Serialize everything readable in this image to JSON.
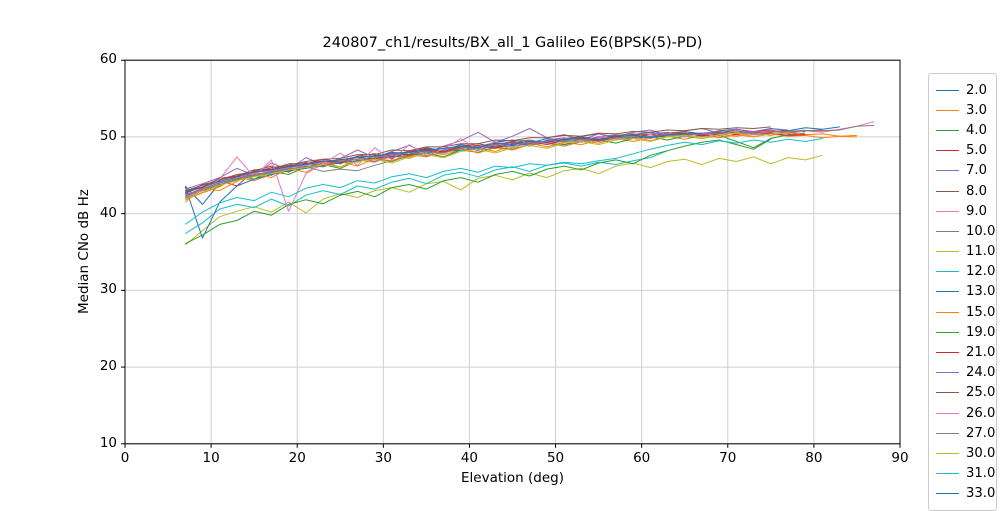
{
  "chart_data": {
    "type": "line",
    "title": "240807_ch1/results/BX_all_1 Galileo E6(BPSK(5)-PD)",
    "xlabel": "Elevation (deg)",
    "ylabel": "Median CNo dB Hz",
    "xlim": [
      0,
      90
    ],
    "ylim": [
      10,
      60
    ],
    "xticks": [
      0,
      10,
      20,
      30,
      40,
      50,
      60,
      70,
      80,
      90
    ],
    "yticks": [
      10,
      20,
      30,
      40,
      50,
      60
    ],
    "grid": true,
    "grid_color": "#cfcfcf",
    "legend_position": "right-outside",
    "legend_border_color": "#cccccc",
    "series": [
      {
        "name": "2.0",
        "color": "#1f77b4",
        "x_start": 7,
        "x_step": 2,
        "values": [
          43.6,
          41.2,
          44.0,
          44.6,
          45.3,
          45.0,
          46.3,
          46.0,
          46.8,
          46.5,
          47.4,
          47.1,
          48.0,
          47.7,
          48.6,
          48.2,
          49.0,
          48.7,
          49.3,
          49.6,
          49.2,
          49.8,
          49.6,
          50.1,
          50.4,
          49.9,
          50.3,
          50.6,
          50.2,
          50.7,
          50.4,
          50.8,
          51.0,
          50.6,
          51.1,
          50.8,
          51.2,
          51.0,
          51.3
        ]
      },
      {
        "name": "3.0",
        "color": "#ff7f0e",
        "x_start": 7,
        "x_step": 2,
        "values": [
          41.8,
          42.7,
          43.5,
          44.8,
          44.3,
          45.1,
          45.6,
          45.9,
          46.6,
          46.1,
          47.0,
          46.7,
          47.5,
          47.2,
          48.1,
          47.7,
          48.3,
          48.6,
          48.1,
          48.9,
          49.2,
          48.7,
          49.3,
          49.0,
          49.6,
          49.8,
          49.4,
          49.9,
          50.1,
          49.7,
          50.2,
          49.9,
          50.3,
          50.0,
          50.4,
          50.1,
          50.2,
          49.9,
          50.1,
          50.0
        ]
      },
      {
        "name": "4.0",
        "color": "#2ca02c",
        "x_start": 7,
        "x_step": 2,
        "values": [
          42.0,
          43.0,
          43.6,
          44.9,
          44.5,
          45.5,
          45.1,
          46.1,
          46.4,
          45.9,
          46.9,
          47.2,
          46.8,
          47.6,
          47.9,
          47.4,
          48.3,
          48.0,
          48.7,
          48.4,
          49.0,
          49.2,
          48.8,
          49.4,
          49.6,
          49.2,
          49.8,
          50.0,
          49.6,
          50.1,
          49.8,
          50.2,
          49.4,
          48.6,
          49.8,
          50.3,
          50.5
        ]
      },
      {
        "name": "5.0",
        "color": "#d62728",
        "x_start": 7,
        "x_step": 2,
        "values": [
          42.6,
          43.8,
          44.3,
          43.6,
          45.6,
          46.2,
          45.4,
          46.6,
          46.2,
          47.1,
          46.7,
          47.6,
          47.2,
          48.1,
          48.4,
          47.9,
          48.7,
          48.3,
          49.1,
          49.3,
          48.9,
          49.5,
          49.8,
          49.4,
          50.0,
          49.7,
          50.2,
          50.4,
          50.0,
          50.5,
          50.2,
          50.6,
          50.3,
          50.7,
          50.9,
          50.5,
          50.8,
          50.9
        ]
      },
      {
        "name": "7.0",
        "color": "#9467bd",
        "x_start": 7,
        "x_step": 2,
        "values": [
          43.2,
          43.9,
          44.7,
          45.9,
          45.0,
          46.6,
          45.7,
          47.3,
          46.4,
          47.2,
          48.3,
          47.3,
          48.1,
          48.9,
          47.9,
          48.8,
          49.5,
          50.6,
          49.3,
          50.1,
          51.1,
          49.9,
          50.3,
          49.6,
          50.4,
          50.0,
          50.6,
          50.9,
          50.2,
          50.8,
          51.1,
          50.5,
          51.0,
          50.7,
          51.1,
          50.9
        ]
      },
      {
        "name": "8.0",
        "color": "#8c564b",
        "x_start": 7,
        "x_step": 2,
        "values": [
          42.9,
          43.5,
          44.6,
          44.9,
          45.7,
          45.8,
          46.5,
          46.5,
          47.1,
          47.2,
          47.7,
          47.7,
          48.3,
          48.2,
          48.7,
          48.7,
          49.1,
          49.1,
          49.6,
          49.5,
          49.9,
          49.9,
          50.2,
          50.1,
          50.5,
          50.4,
          50.7,
          50.6,
          50.9,
          50.8,
          51.1,
          51.0,
          51.2,
          51.1,
          51.3
        ]
      },
      {
        "name": "9.0",
        "color": "#e377c2",
        "x_start": 7,
        "x_step": 2,
        "values": [
          42.4,
          43.3,
          44.1,
          44.6,
          45.4,
          45.6,
          46.0,
          46.3,
          46.7,
          46.9,
          47.3,
          47.0,
          47.8,
          47.9,
          48.2,
          48.3,
          48.6,
          48.7,
          49.0,
          48.6,
          49.3,
          49.4,
          49.6,
          49.6,
          49.9,
          49.9,
          50.1,
          49.8,
          50.3,
          50.3,
          50.5,
          50.5,
          50.6,
          50.6,
          50.8,
          50.7,
          50.9
        ]
      },
      {
        "name": "10.0",
        "color": "#7f7f7f",
        "x_start": 7,
        "x_step": 2,
        "values": [
          42.2,
          43.1,
          43.8,
          44.4,
          44.9,
          45.3,
          45.7,
          46.1,
          45.5,
          45.8,
          45.6,
          46.3,
          46.9,
          47.5,
          47.9,
          48.1,
          48.3,
          48.5,
          48.7,
          48.9,
          49.0,
          49.2,
          49.4,
          49.5,
          49.7,
          49.8,
          49.9,
          50.0,
          50.1,
          50.2,
          50.3,
          50.4,
          50.5,
          50.6,
          50.6,
          50.7,
          50.8,
          50.8,
          50.9
        ]
      },
      {
        "name": "11.0",
        "color": "#bcbd22",
        "x_start": 7,
        "x_step": 2,
        "values": [
          35.9,
          37.8,
          39.6,
          40.3,
          40.9,
          40.2,
          41.5,
          40.1,
          41.9,
          42.6,
          42.1,
          43.0,
          43.4,
          42.8,
          43.9,
          44.2,
          43.1,
          44.6,
          45.0,
          44.4,
          45.3,
          44.7,
          45.6,
          45.9,
          45.2,
          46.2,
          46.6,
          46.0,
          46.8,
          47.1,
          46.4,
          47.2,
          46.8,
          47.4,
          46.5,
          47.3,
          47.0,
          47.6
        ]
      },
      {
        "name": "12.0",
        "color": "#17becf",
        "x_start": 7,
        "x_step": 2,
        "values": [
          37.4,
          38.8,
          40.6,
          41.2,
          40.8,
          41.9,
          41.0,
          42.4,
          43.0,
          42.5,
          43.6,
          43.2,
          44.1,
          44.6,
          43.9,
          45.0,
          45.4,
          44.8,
          45.7,
          46.1,
          45.5,
          46.3,
          46.6,
          46.2,
          46.7,
          46.4,
          46.9,
          47.3,
          48.2
        ]
      },
      {
        "name": "13.0",
        "color": "#1f77b4",
        "x_start": 7,
        "x_step": 2,
        "values": [
          43.5,
          36.8,
          41.5,
          43.6,
          44.5,
          45.1,
          45.6,
          45.9,
          46.3,
          46.6,
          46.9,
          47.2,
          47.4,
          47.6,
          48.2,
          48.1,
          48.3,
          48.5,
          48.7,
          48.9,
          49.1,
          49.2,
          49.0,
          49.5,
          49.7,
          49.8,
          49.9,
          50.0,
          50.1,
          50.2,
          50.3,
          50.4,
          50.5,
          50.5,
          50.6,
          50.7,
          50.7
        ]
      },
      {
        "name": "15.0",
        "color": "#ff7f0e",
        "x_start": 7,
        "x_step": 2,
        "values": [
          41.5,
          43.3,
          43.0,
          44.2,
          45.3,
          44.7,
          45.9,
          45.4,
          46.4,
          46.8,
          46.2,
          47.2,
          46.9,
          47.7,
          47.4,
          48.0,
          48.5,
          47.9,
          48.6,
          48.3,
          49.0,
          49.3,
          48.8,
          49.5,
          49.2,
          49.8,
          50.0,
          49.5,
          50.1,
          50.3,
          49.8,
          50.3,
          50.1,
          50.5,
          50.2,
          50.6,
          50.3,
          50.4,
          50.1,
          50.2
        ]
      },
      {
        "name": "19.0",
        "color": "#2ca02c",
        "x_start": 7,
        "x_step": 2,
        "values": [
          36.1,
          37.2,
          38.6,
          39.1,
          40.3,
          39.8,
          41.2,
          41.8,
          41.3,
          42.4,
          42.9,
          42.2,
          43.4,
          43.8,
          43.2,
          44.3,
          44.7,
          44.1,
          45.1,
          45.5,
          44.9,
          45.8,
          46.2,
          45.7,
          46.6,
          47.0,
          46.5,
          47.6,
          48.2,
          48.8,
          49.3,
          49.6,
          49.0,
          48.4,
          49.7
        ]
      },
      {
        "name": "21.0",
        "color": "#d62728",
        "x_start": 7,
        "x_step": 2,
        "values": [
          42.8,
          43.4,
          44.4,
          44.9,
          45.5,
          45.8,
          46.2,
          46.5,
          46.9,
          46.6,
          47.4,
          47.1,
          47.9,
          47.6,
          48.3,
          48.0,
          48.7,
          48.9,
          48.5,
          49.2,
          49.4,
          49.0,
          49.6,
          49.8,
          49.5,
          50.0,
          50.2,
          49.9,
          50.3,
          50.5,
          50.1,
          50.4,
          50.6,
          50.3,
          50.5,
          50.2,
          50.3
        ]
      },
      {
        "name": "24.0",
        "color": "#9467bd",
        "x_start": 7,
        "x_step": 2,
        "values": [
          42.5,
          43.2,
          44.0,
          44.6,
          45.1,
          45.5,
          45.9,
          46.7,
          46.1,
          47.0,
          47.3,
          46.8,
          47.7,
          48.0,
          47.5,
          48.4,
          48.8,
          48.2,
          49.0,
          49.4,
          48.8,
          49.6,
          49.9,
          49.3,
          50.0,
          50.3,
          49.8,
          50.4,
          50.6,
          50.1,
          50.5,
          50.7,
          50.4,
          50.6
        ]
      },
      {
        "name": "25.0",
        "color": "#8c564b",
        "x_start": 7,
        "x_step": 2,
        "values": [
          43.0,
          43.7,
          44.4,
          45.1,
          45.4,
          46.0,
          46.3,
          46.8,
          47.1,
          46.7,
          47.5,
          47.8,
          47.4,
          48.2,
          48.5,
          48.1,
          48.8,
          49.1,
          48.7,
          49.4,
          49.6,
          49.2,
          49.8,
          50.0,
          49.7,
          50.2,
          50.4,
          50.1,
          50.5,
          50.7,
          50.3,
          50.6,
          50.8,
          50.5,
          50.7,
          50.8
        ]
      },
      {
        "name": "26.0",
        "color": "#e377c2",
        "x_start": 7,
        "x_step": 2,
        "values": [
          42.1,
          43.0,
          44.5,
          47.4,
          44.8,
          47.0,
          40.3,
          45.2,
          46.5,
          47.9,
          46.3,
          48.6,
          47.0,
          49.0,
          47.6,
          48.4,
          49.8,
          48.3,
          49.4,
          48.7,
          49.6,
          49.1,
          49.9,
          49.5,
          50.1,
          49.7,
          50.2,
          49.9,
          50.4,
          50.0,
          50.5,
          50.1,
          50.6,
          50.3,
          50.7,
          50.4,
          50.8,
          50.6,
          51.0,
          51.4,
          52.0
        ]
      },
      {
        "name": "27.0",
        "color": "#7f7f7f",
        "x_start": 7,
        "x_step": 2,
        "values": [
          42.3,
          43.2,
          44.0,
          44.5,
          45.0,
          45.4,
          45.8,
          46.2,
          46.1,
          46.8,
          47.1,
          47.4,
          47.6,
          47.9,
          48.1,
          47.9,
          48.5,
          48.7,
          48.9,
          49.1,
          49.2,
          49.4,
          49.5,
          49.7,
          49.4,
          49.9,
          50.0,
          50.1,
          50.2,
          50.3,
          50.4,
          50.5,
          50.5,
          50.6,
          50.7,
          50.7,
          50.8,
          50.8,
          50.9,
          51.4,
          51.5
        ]
      },
      {
        "name": "30.0",
        "color": "#bcbd22",
        "x_start": 7,
        "x_step": 2,
        "values": [
          41.9,
          42.8,
          43.7,
          44.3,
          44.8,
          45.2,
          45.7,
          46.0,
          46.4,
          46.1,
          46.8,
          47.1,
          46.6,
          47.4,
          47.7,
          47.3,
          48.1,
          48.4,
          47.9,
          48.6,
          48.9,
          48.5,
          49.2,
          49.4,
          49.0,
          49.6,
          49.8,
          49.4,
          50.0,
          50.2,
          49.8,
          50.3,
          50.5,
          50.1,
          50.4,
          50.5
        ]
      },
      {
        "name": "31.0",
        "color": "#17becf",
        "x_start": 7,
        "x_step": 2,
        "values": [
          38.6,
          40.2,
          41.4,
          42.1,
          41.7,
          42.8,
          42.2,
          43.3,
          43.8,
          43.4,
          44.3,
          44.0,
          44.8,
          45.2,
          44.7,
          45.5,
          45.9,
          45.4,
          46.2,
          46.0,
          46.5,
          46.3,
          46.7,
          46.5,
          46.9,
          47.2,
          47.8,
          48.4,
          48.9,
          49.3,
          49.0,
          49.5,
          49.2,
          49.6,
          49.3,
          49.7,
          49.4,
          49.8
        ]
      },
      {
        "name": "33.0",
        "color": "#1f77b4",
        "x_start": 7,
        "x_step": 2,
        "values": [
          42.7,
          43.5,
          44.2,
          44.8,
          45.4,
          45.7,
          46.1,
          46.4,
          46.8,
          47.0,
          47.4,
          47.5,
          47.9,
          48.0,
          48.3,
          48.5,
          48.8,
          48.6,
          49.2,
          49.0,
          49.5,
          49.3,
          49.7,
          49.9,
          49.6,
          50.1,
          50.2,
          49.9,
          50.3,
          50.4,
          50.5
        ]
      }
    ]
  }
}
